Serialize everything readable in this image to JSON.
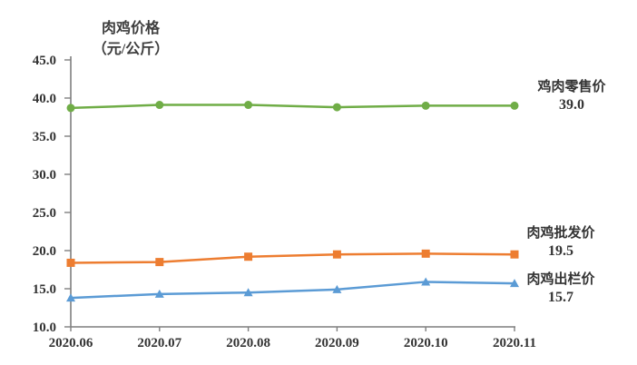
{
  "page": {
    "background": "#ffffff"
  },
  "chart_data": {
    "type": "line",
    "title_line1": "肉鸡价格",
    "title_line2": "（元/公斤）",
    "categories": [
      "2020.06",
      "2020.07",
      "2020.08",
      "2020.09",
      "2020.10",
      "2020.11"
    ],
    "y_tick_labels": [
      "45.0",
      "40.0",
      "35.0",
      "30.0",
      "25.0",
      "20.0",
      "15.0",
      "10.0"
    ],
    "ylim": [
      10.0,
      45.0
    ],
    "y_step": 5.0,
    "grid": false,
    "legend_position": "right-end-annotations",
    "axis_color": "#7f7f7f",
    "text_color": "#333333",
    "series": [
      {
        "name": "鸡肉零售价",
        "end_label_value": "39.0",
        "color": "#70AD47",
        "marker": "circle",
        "values": [
          38.7,
          39.1,
          39.1,
          38.8,
          39.0,
          39.0
        ]
      },
      {
        "name": "肉鸡批发价",
        "end_label_value": "19.5",
        "color": "#ED7D31",
        "marker": "square",
        "values": [
          18.4,
          18.5,
          19.2,
          19.5,
          19.6,
          19.5
        ]
      },
      {
        "name": "肉鸡出栏价",
        "end_label_value": "15.7",
        "color": "#5B9BD5",
        "marker": "triangle",
        "values": [
          13.8,
          14.3,
          14.5,
          14.9,
          15.9,
          15.7
        ]
      }
    ]
  }
}
